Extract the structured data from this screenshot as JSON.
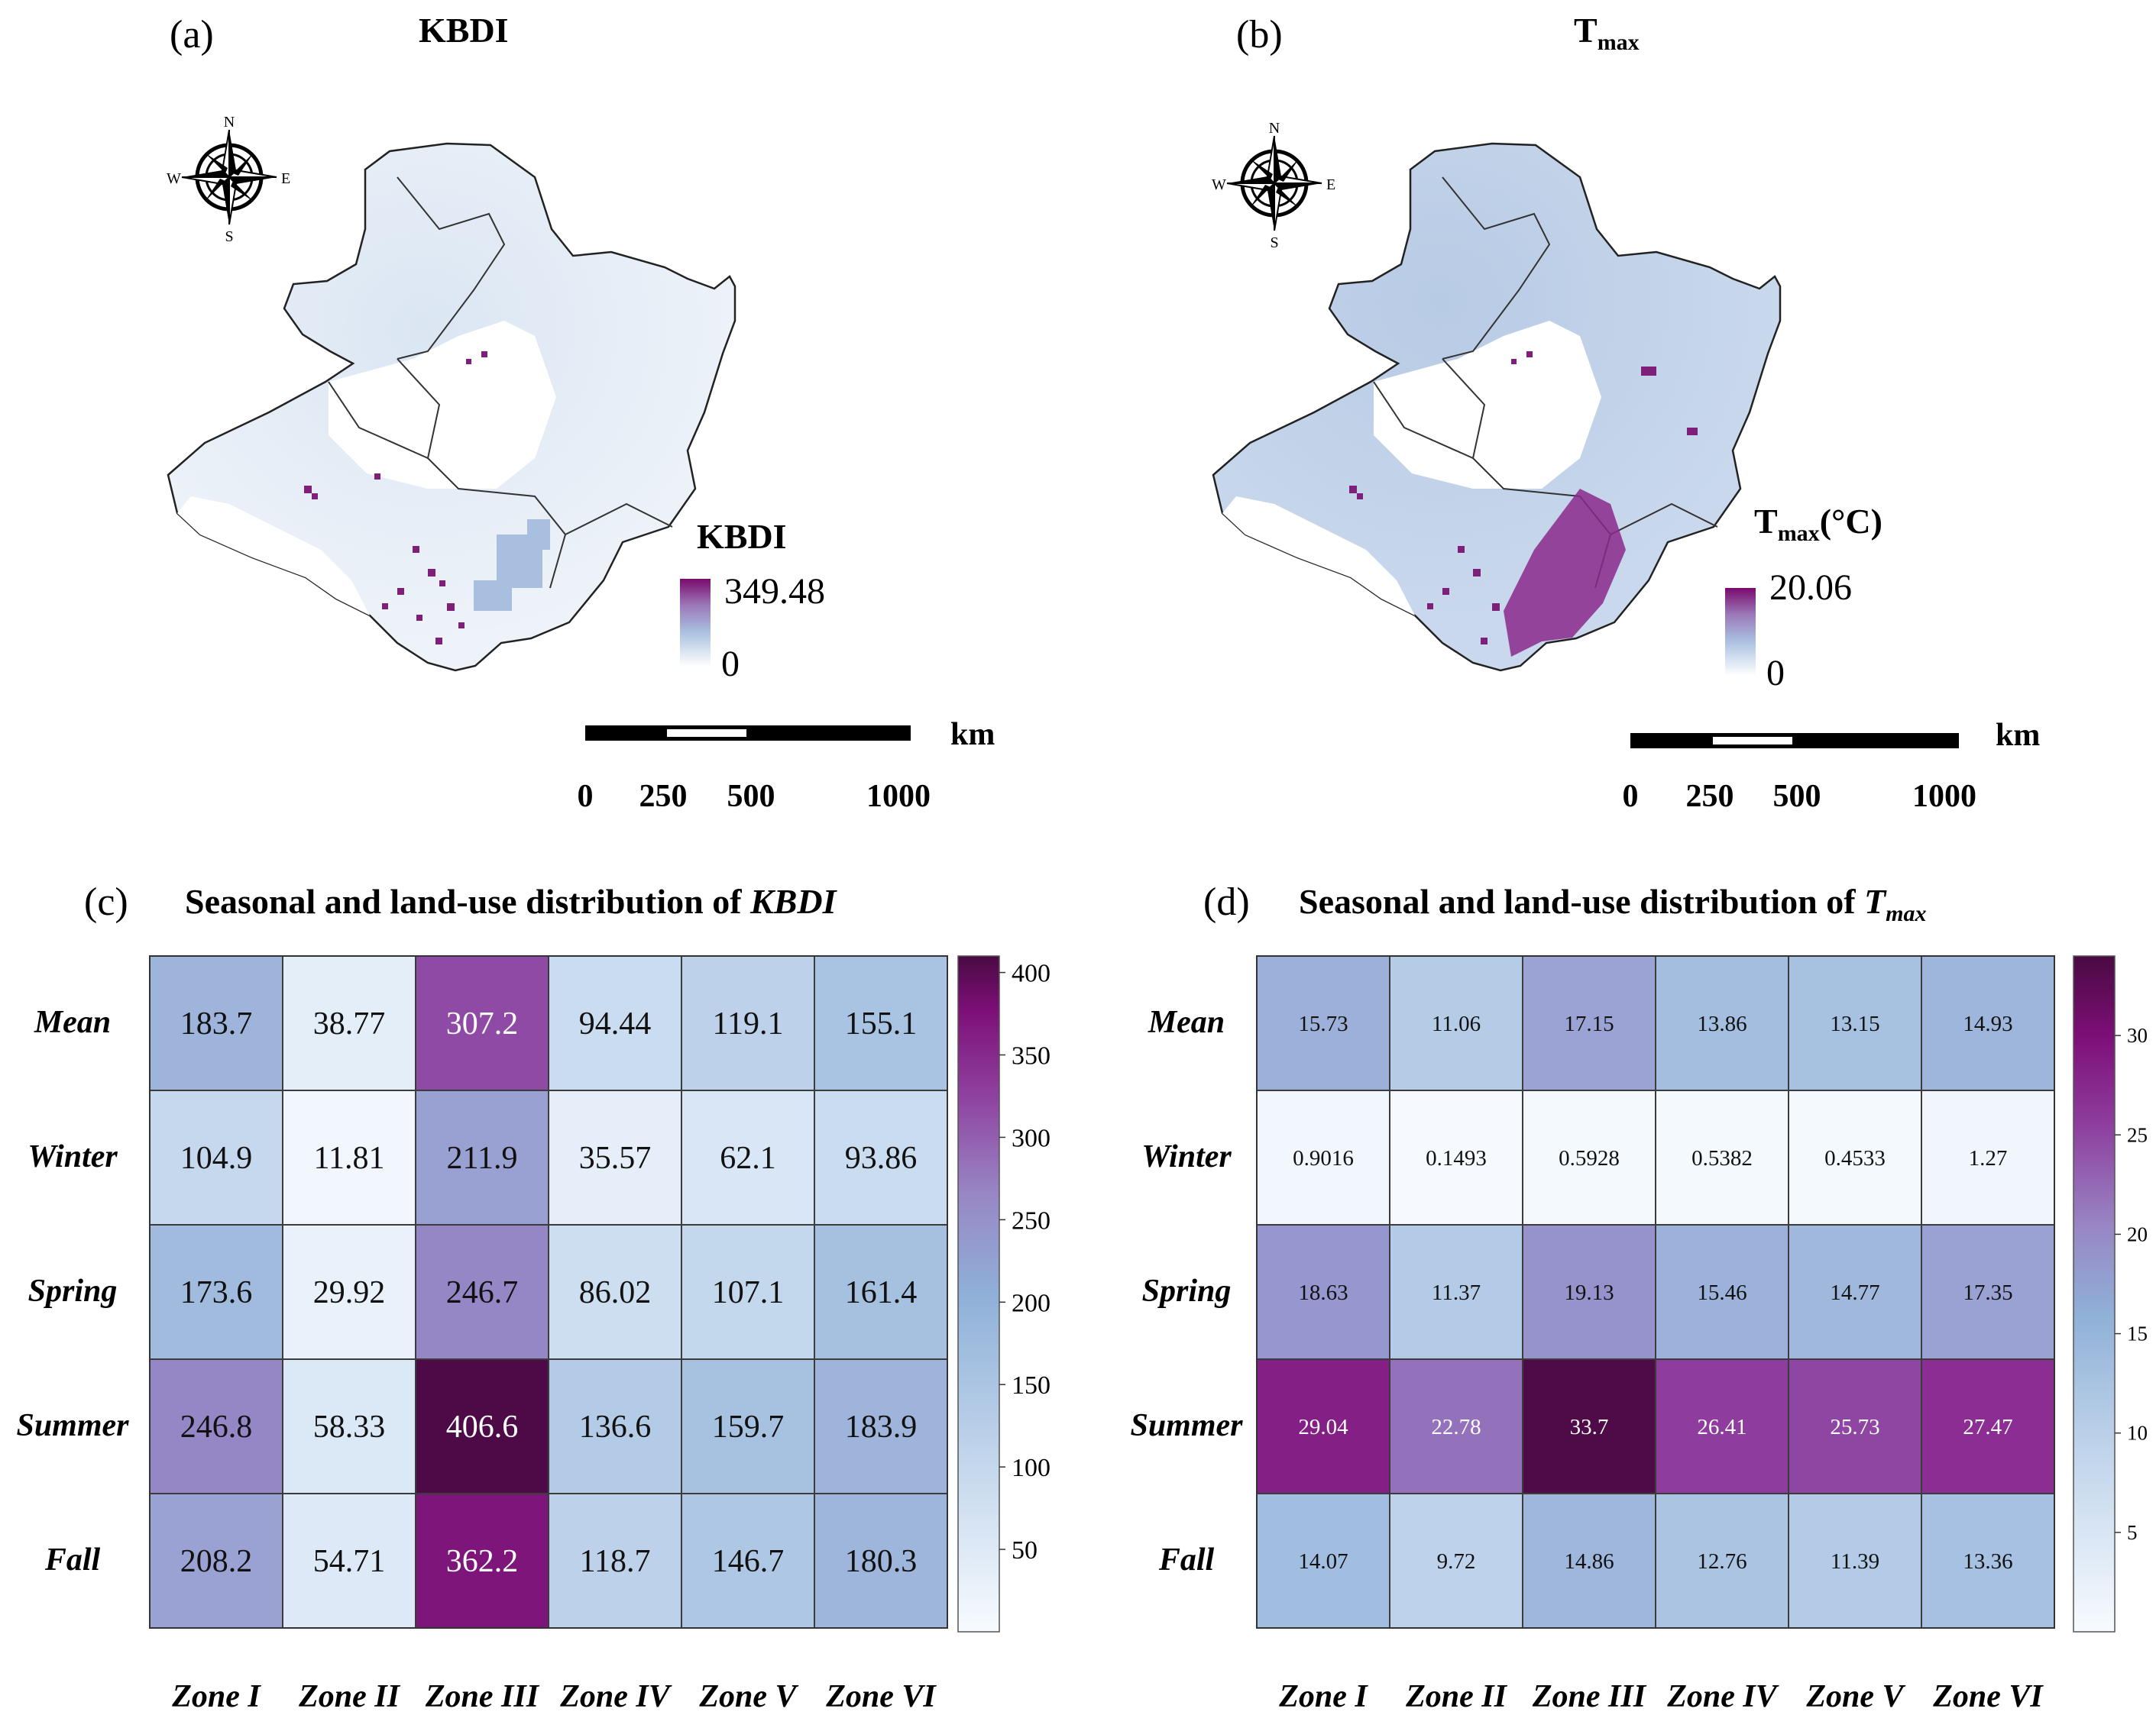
{
  "panel_a": {
    "label": "(a)",
    "title": "KBDI",
    "legend_title": "KBDI",
    "legend_max": "349.48",
    "legend_min": "0",
    "compass": {
      "n": "N",
      "s": "S",
      "e": "E",
      "w": "W"
    },
    "scale": {
      "unit": "km",
      "ticks": [
        "0",
        "250",
        "500",
        "1000"
      ]
    }
  },
  "panel_b": {
    "label": "(b)",
    "title_main": "T",
    "title_sub": "max",
    "legend_title_main": "T",
    "legend_title_sub": "max",
    "legend_title_unit": "(°C)",
    "legend_max": "20.06",
    "legend_min": "0",
    "compass": {
      "n": "N",
      "s": "S",
      "e": "E",
      "w": "W"
    },
    "scale": {
      "unit": "km",
      "ticks": [
        "0",
        "250",
        "500",
        "1000"
      ]
    }
  },
  "panel_c": {
    "label": "(c)",
    "title_prefix": "Seasonal and land-use distribution of ",
    "title_var": "KBDI"
  },
  "panel_d": {
    "label": "(d)",
    "title_prefix": "Seasonal and land-use distribution of ",
    "title_var": "T",
    "title_sub": "max"
  },
  "colors": {
    "low": "#f7fbff",
    "mid1": "#c6d9ee",
    "mid2": "#8fb3d8",
    "mid3": "#9e86c4",
    "mid4": "#8e1e8a",
    "high": "#4d0a44",
    "map_fill": "#e7eef7",
    "map_outline": "#222222"
  },
  "chart_data": [
    {
      "type": "heatmap",
      "title": "Seasonal and land-use distribution of KBDI",
      "rows": [
        "Mean",
        "Winter",
        "Spring",
        "Summer",
        "Fall"
      ],
      "columns": [
        "Zone I",
        "Zone II",
        "Zone III",
        "Zone IV",
        "Zone V",
        "Zone VI"
      ],
      "values": [
        [
          "183.7",
          "38.77",
          "307.2",
          "94.44",
          "119.1",
          "155.1"
        ],
        [
          "104.9",
          "11.81",
          "211.9",
          "35.57",
          "62.1",
          "93.86"
        ],
        [
          "173.6",
          "29.92",
          "246.7",
          "86.02",
          "107.1",
          "161.4"
        ],
        [
          "246.8",
          "58.33",
          "406.6",
          "136.6",
          "159.7",
          "183.9"
        ],
        [
          "208.2",
          "54.71",
          "362.2",
          "118.7",
          "146.7",
          "180.3"
        ]
      ],
      "colorbar_ticks": [
        "50",
        "100",
        "150",
        "200",
        "250",
        "300",
        "350",
        "400"
      ],
      "vmin": 0,
      "vmax": 410
    },
    {
      "type": "heatmap",
      "title": "Seasonal and land-use distribution of Tmax",
      "rows": [
        "Mean",
        "Winter",
        "Spring",
        "Summer",
        "Fall"
      ],
      "columns": [
        "Zone I",
        "Zone II",
        "Zone III",
        "Zone IV",
        "Zone V",
        "Zone VI"
      ],
      "values": [
        [
          "15.73",
          "11.06",
          "17.15",
          "13.86",
          "13.15",
          "14.93"
        ],
        [
          "0.9016",
          "0.1493",
          "0.5928",
          "0.5382",
          "0.4533",
          "1.27"
        ],
        [
          "18.63",
          "11.37",
          "19.13",
          "15.46",
          "14.77",
          "17.35"
        ],
        [
          "29.04",
          "22.78",
          "33.7",
          "26.41",
          "25.73",
          "27.47"
        ],
        [
          "14.07",
          "9.72",
          "14.86",
          "12.76",
          "11.39",
          "13.36"
        ]
      ],
      "colorbar_ticks": [
        "5",
        "10",
        "15",
        "20",
        "25",
        "30"
      ],
      "vmin": 0,
      "vmax": 34
    }
  ]
}
